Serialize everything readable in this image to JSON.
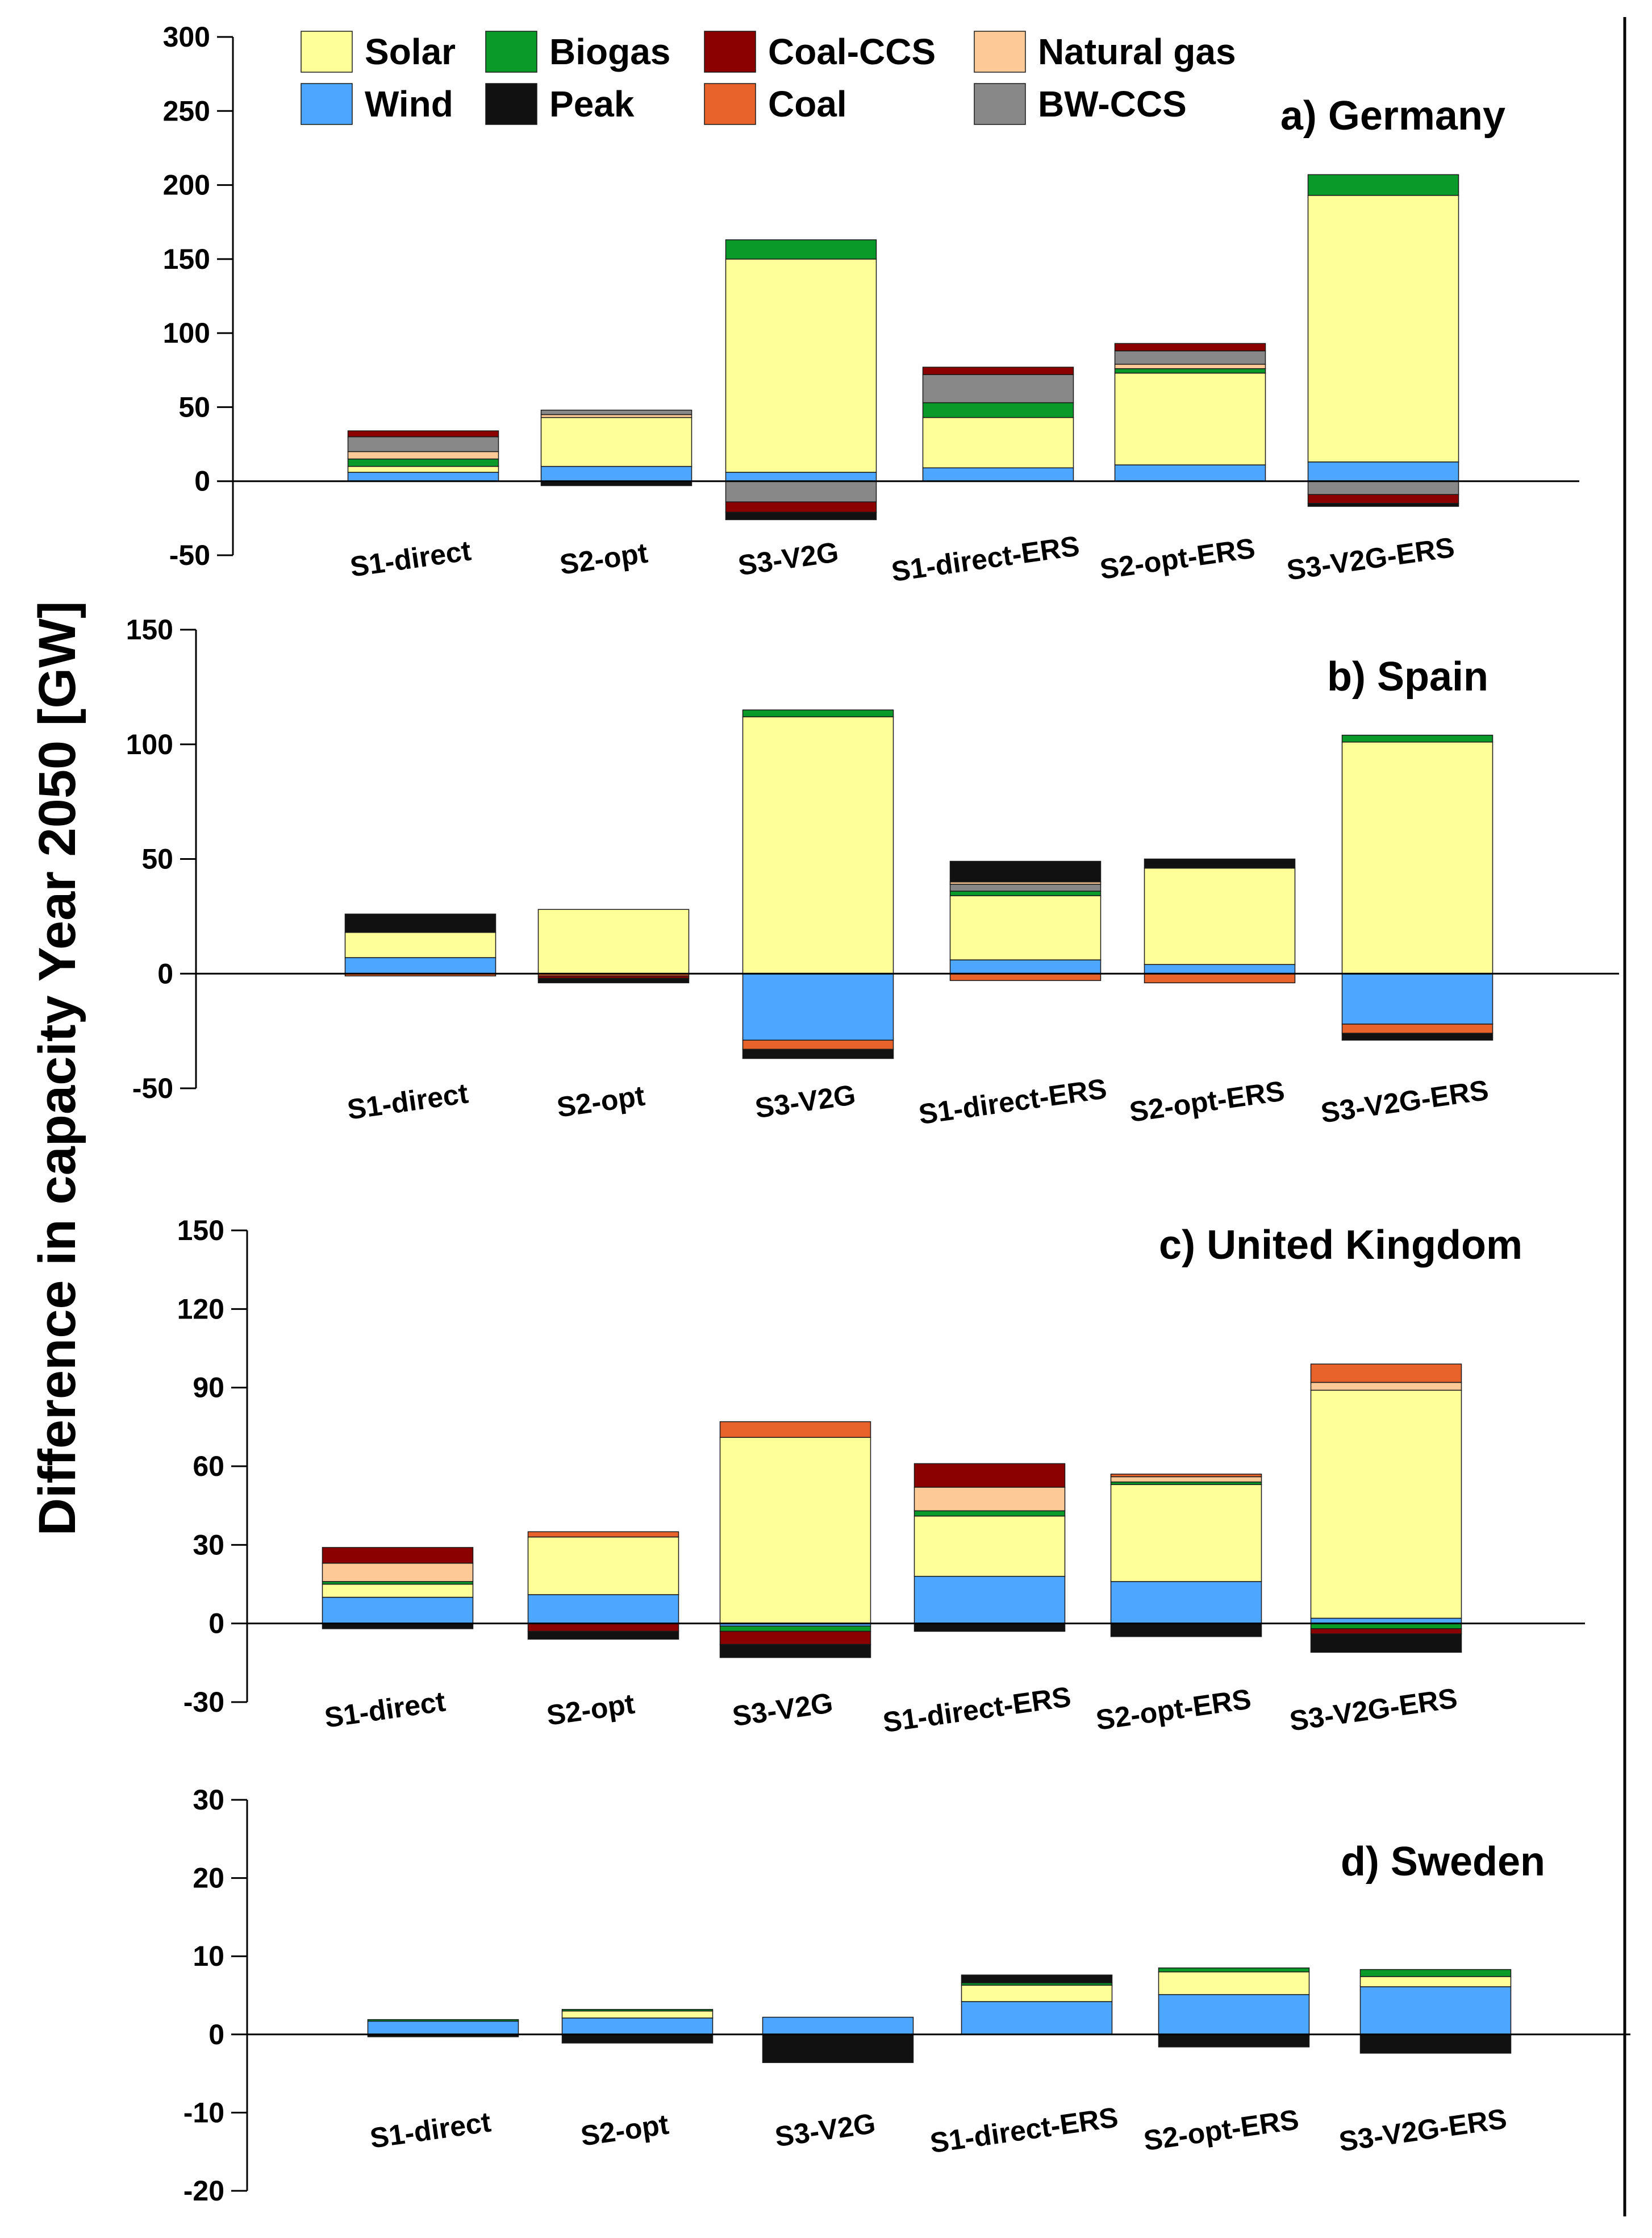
{
  "chart_data": {
    "type": "bar",
    "stacked": true,
    "ylabel": "Difference in capacity Year 2050 [GW]",
    "categories": [
      "S1-direct",
      "S2-opt",
      "S3-V2G",
      "S1-direct-ERS",
      "S2-opt-ERS",
      "S3-V2G-ERS"
    ],
    "legend": [
      {
        "name": "Solar",
        "color": "#FFFF99"
      },
      {
        "name": "Wind",
        "color": "#4DA6FF"
      },
      {
        "name": "Biogas",
        "color": "#0A9A2A"
      },
      {
        "name": "Peak",
        "color": "#111111"
      },
      {
        "name": "Coal-CCS",
        "color": "#8B0000"
      },
      {
        "name": "Coal",
        "color": "#E8622C"
      },
      {
        "name": "Natural gas",
        "color": "#FCC997"
      },
      {
        "name": "BW-CCS",
        "color": "#888888"
      }
    ],
    "panels": [
      {
        "title": "a) Germany",
        "ylim": [
          -50,
          300
        ],
        "yticks": [
          -50,
          0,
          50,
          100,
          150,
          200,
          250,
          300
        ],
        "series": [
          {
            "name": "Wind",
            "values": [
              6,
              10,
              6,
              9,
              11,
              13
            ]
          },
          {
            "name": "Solar",
            "values": [
              4,
              33,
              144,
              34,
              62,
              180
            ]
          },
          {
            "name": "Biogas",
            "values": [
              5,
              0,
              13,
              10,
              3,
              14
            ]
          },
          {
            "name": "Natural gas",
            "values": [
              5,
              2,
              0,
              0,
              3,
              0
            ]
          },
          {
            "name": "BW-CCS",
            "values": [
              10,
              3,
              -14,
              19,
              9,
              -9
            ]
          },
          {
            "name": "Coal-CCS",
            "values": [
              4,
              0,
              -7,
              5,
              5,
              -6
            ]
          },
          {
            "name": "Coal",
            "values": [
              0,
              0,
              0,
              0,
              0,
              0
            ]
          },
          {
            "name": "Peak",
            "values": [
              0,
              -3,
              -5,
              0,
              0,
              -2
            ]
          }
        ]
      },
      {
        "title": "b) Spain",
        "ylim": [
          -50,
          150
        ],
        "yticks": [
          -50,
          0,
          50,
          100,
          150
        ],
        "series": [
          {
            "name": "Wind",
            "values": [
              7,
              0,
              -29,
              6,
              4,
              -22
            ]
          },
          {
            "name": "Solar",
            "values": [
              11,
              28,
              112,
              28,
              42,
              101
            ]
          },
          {
            "name": "Biogas",
            "values": [
              0,
              0,
              3,
              2,
              0,
              3
            ]
          },
          {
            "name": "BW-CCS",
            "values": [
              0,
              0,
              0,
              3,
              0,
              0
            ]
          },
          {
            "name": "Natural gas",
            "values": [
              0,
              0,
              0,
              1,
              0,
              0
            ]
          },
          {
            "name": "Coal",
            "values": [
              -1,
              -1,
              -4,
              -3,
              -4,
              -4
            ]
          },
          {
            "name": "Coal-CCS",
            "values": [
              0,
              -1,
              0,
              0,
              0,
              0
            ]
          },
          {
            "name": "Peak",
            "values": [
              8,
              -2,
              -4,
              9,
              4,
              -3
            ]
          }
        ]
      },
      {
        "title": "c) United Kingdom",
        "ylim": [
          -30,
          150
        ],
        "yticks": [
          -30,
          0,
          30,
          60,
          90,
          120,
          150
        ],
        "series": [
          {
            "name": "Wind",
            "values": [
              10,
              11,
              -1,
              18,
              16,
              2
            ]
          },
          {
            "name": "Solar",
            "values": [
              5,
              22,
              71,
              23,
              37,
              87
            ]
          },
          {
            "name": "Biogas",
            "values": [
              1,
              0,
              -2,
              2,
              1,
              -2
            ]
          },
          {
            "name": "Natural gas",
            "values": [
              7,
              0,
              0,
              9,
              2,
              3
            ]
          },
          {
            "name": "Coal-CCS",
            "values": [
              6,
              -3,
              -5,
              9,
              0,
              -2
            ]
          },
          {
            "name": "Coal",
            "values": [
              0,
              2,
              6,
              0,
              1,
              7
            ]
          },
          {
            "name": "Peak",
            "values": [
              -2,
              -3,
              -5,
              -3,
              -5,
              -7
            ]
          }
        ]
      },
      {
        "title": "d) Sweden",
        "ylim": [
          -20,
          30
        ],
        "yticks": [
          -20,
          -10,
          0,
          10,
          20,
          30
        ],
        "series": [
          {
            "name": "Wind",
            "values": [
              1.7,
              2.1,
              2.2,
              4.2,
              5.1,
              6.1
            ]
          },
          {
            "name": "Solar",
            "values": [
              0,
              0.9,
              0,
              2.1,
              2.9,
              1.3
            ]
          },
          {
            "name": "Biogas",
            "values": [
              0.2,
              0.2,
              0,
              0.3,
              0.5,
              0.9
            ]
          },
          {
            "name": "Peak",
            "values": [
              -0.3,
              -1.1,
              -3.6,
              1.0,
              -1.6,
              -2.4
            ]
          }
        ]
      }
    ]
  }
}
